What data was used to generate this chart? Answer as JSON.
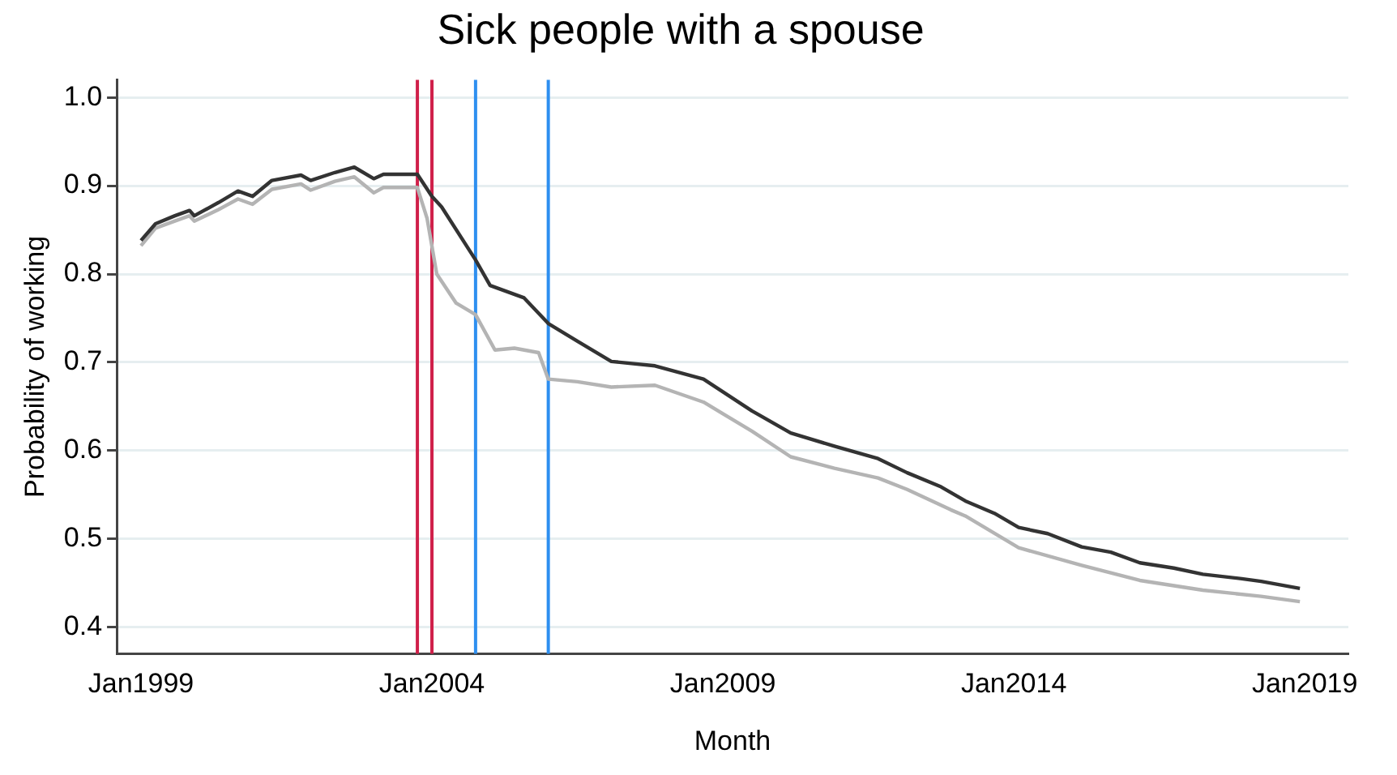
{
  "chart_data": {
    "type": "line",
    "title": "Sick people with a spouse",
    "xlabel": "Month",
    "ylabel": "Probability of working",
    "xlim": [
      "1998-08",
      "2019-10"
    ],
    "xticks": [
      {
        "value": "1999-01",
        "label": "Jan1999"
      },
      {
        "value": "2004-01",
        "label": "Jan2004"
      },
      {
        "value": "2009-01",
        "label": "Jan2009"
      },
      {
        "value": "2014-01",
        "label": "Jan2014"
      },
      {
        "value": "2019-01",
        "label": "Jan2019"
      }
    ],
    "ylim": [
      0.37,
      1.02
    ],
    "yticks": [
      0.4,
      0.5,
      0.6,
      0.7,
      0.8,
      0.9,
      {
        "value": 1,
        "label": "1.0"
      }
    ],
    "grid": "y",
    "legend": false,
    "marker": "none",
    "ref_lines": [
      {
        "axis": "x",
        "value": "2003-10",
        "color": "#d0204a"
      },
      {
        "axis": "x",
        "value": "2004-01",
        "color": "#d0204a"
      },
      {
        "axis": "x",
        "value": "2004-10",
        "color": "#2e8ff0"
      },
      {
        "axis": "x",
        "value": "2006-01",
        "color": "#2e8ff0"
      }
    ],
    "series": [
      {
        "color": "#333333",
        "x": [
          "1999-01",
          "1999-04",
          "1999-08",
          "1999-11",
          "1999-12",
          "2000-05",
          "2000-09",
          "2000-12",
          "2001-04",
          "2001-10",
          "2001-12",
          "2002-05",
          "2002-09",
          "2003-01",
          "2003-03",
          "2003-10",
          "2004-01",
          "2004-03",
          "2004-10",
          "2005-01",
          "2005-08",
          "2006-01",
          "2006-07",
          "2007-02",
          "2007-11",
          "2008-09",
          "2009-07",
          "2010-03",
          "2010-12",
          "2011-09",
          "2012-03",
          "2012-10",
          "2013-03",
          "2013-09",
          "2014-02",
          "2014-08",
          "2015-03",
          "2015-09",
          "2016-03",
          "2016-10",
          "2017-04",
          "2017-12",
          "2018-04",
          "2018-12"
        ],
        "values": [
          0.838,
          0.857,
          0.866,
          0.872,
          0.866,
          0.881,
          0.894,
          0.888,
          0.906,
          0.912,
          0.906,
          0.915,
          0.921,
          0.908,
          0.913,
          0.913,
          0.888,
          0.876,
          0.816,
          0.787,
          0.773,
          0.744,
          0.724,
          0.701,
          0.696,
          0.681,
          0.645,
          0.62,
          0.605,
          0.591,
          0.575,
          0.559,
          0.543,
          0.529,
          0.513,
          0.506,
          0.491,
          0.485,
          0.473,
          0.467,
          0.46,
          0.455,
          0.452,
          0.444
        ]
      },
      {
        "color": "#b4b4b4",
        "x": [
          "1999-01",
          "1999-04",
          "1999-08",
          "1999-11",
          "1999-12",
          "2000-05",
          "2000-09",
          "2000-12",
          "2001-04",
          "2001-10",
          "2001-12",
          "2002-05",
          "2002-09",
          "2003-01",
          "2003-03",
          "2003-10",
          "2003-12",
          "2004-02",
          "2004-06",
          "2004-10",
          "2005-02",
          "2005-06",
          "2005-11",
          "2006-01",
          "2006-07",
          "2007-02",
          "2007-11",
          "2008-09",
          "2009-07",
          "2010-03",
          "2010-12",
          "2011-09",
          "2012-03",
          "2012-12",
          "2013-03",
          "2014-02",
          "2015-03",
          "2016-03",
          "2017-04",
          "2018-04",
          "2018-12"
        ],
        "values": [
          0.832,
          0.852,
          0.86,
          0.866,
          0.86,
          0.873,
          0.885,
          0.879,
          0.896,
          0.902,
          0.895,
          0.905,
          0.91,
          0.892,
          0.898,
          0.898,
          0.863,
          0.8,
          0.767,
          0.754,
          0.714,
          0.716,
          0.711,
          0.681,
          0.678,
          0.672,
          0.674,
          0.655,
          0.622,
          0.593,
          0.58,
          0.569,
          0.556,
          0.533,
          0.526,
          0.49,
          0.47,
          0.453,
          0.442,
          0.435,
          0.429
        ]
      }
    ]
  }
}
